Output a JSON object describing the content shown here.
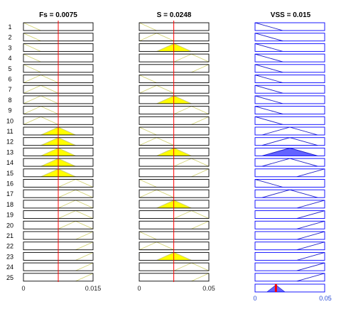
{
  "viewer": {
    "columns": [
      {
        "key": "fs",
        "title": "Fs = 0.0075",
        "kind": "input",
        "value": 0.0075,
        "range": [
          0,
          0.015
        ],
        "tick_left": "0",
        "tick_right": "0.015",
        "mf_color": "#d4d47a",
        "fill_color": "#ffff00",
        "box_color": "#000000"
      },
      {
        "key": "s",
        "title": "S = 0.0248",
        "kind": "input",
        "value": 0.0248,
        "range": [
          0,
          0.05
        ],
        "tick_left": "0",
        "tick_right": "0.05",
        "mf_color": "#d4d47a",
        "fill_color": "#ffff00",
        "box_color": "#000000"
      },
      {
        "key": "vss",
        "title": "VSS = 0.015",
        "kind": "output",
        "value": 0.015,
        "range": [
          0,
          0.05
        ],
        "tick_left": "0",
        "tick_right": "0.05",
        "mf_color": "#2020c8",
        "fill_color": "#6464ff",
        "box_color": "#0000ff",
        "tick_color": "#2a4bd7"
      }
    ],
    "rule_numbers": [
      "1",
      "2",
      "3",
      "4",
      "5",
      "6",
      "7",
      "8",
      "9",
      "10",
      "11",
      "12",
      "13",
      "14",
      "15",
      "16",
      "17",
      "18",
      "19",
      "20",
      "21",
      "22",
      "23",
      "24",
      "25"
    ],
    "rules": [
      [
        "low",
        "low",
        "low"
      ],
      [
        "low",
        "mid",
        "low"
      ],
      [
        "low",
        "high",
        "low"
      ],
      [
        "low",
        "vhigh",
        "low"
      ],
      [
        "low",
        "vvhigh",
        "low"
      ],
      [
        "mid",
        "low",
        "low"
      ],
      [
        "mid",
        "mid",
        "low"
      ],
      [
        "mid",
        "high",
        "low"
      ],
      [
        "mid",
        "vhigh",
        "low"
      ],
      [
        "mid",
        "vvhigh",
        "low"
      ],
      [
        "high",
        "low",
        "mid"
      ],
      [
        "high",
        "mid",
        "mid"
      ],
      [
        "high",
        "high",
        "mid"
      ],
      [
        "high",
        "vhigh",
        "mid"
      ],
      [
        "high",
        "vvhigh",
        "high"
      ],
      [
        "vhigh",
        "low",
        "low"
      ],
      [
        "vhigh",
        "mid",
        "mid"
      ],
      [
        "vhigh",
        "high",
        "high"
      ],
      [
        "vhigh",
        "vhigh",
        "high"
      ],
      [
        "vhigh",
        "vvhigh",
        "high"
      ],
      [
        "vvhigh",
        "low",
        "high"
      ],
      [
        "vvhigh",
        "mid",
        "high"
      ],
      [
        "vvhigh",
        "high",
        "high"
      ],
      [
        "vvhigh",
        "vhigh",
        "high"
      ],
      [
        "vvhigh",
        "vvhigh",
        "high"
      ]
    ],
    "input_mfs": {
      "low": [
        -0.25,
        0,
        0.25
      ],
      "mid": [
        0,
        0.25,
        0.5
      ],
      "high": [
        0.25,
        0.5,
        0.75
      ],
      "vhigh": [
        0.5,
        0.75,
        1
      ],
      "vvhigh": [
        0.75,
        1,
        1.25
      ]
    },
    "output_mfs": {
      "low": [
        -0.4,
        0,
        0.4
      ],
      "mid": [
        0.1,
        0.5,
        0.9
      ],
      "high": [
        0.6,
        1,
        1.4
      ]
    },
    "aggregate_fill": 0.9,
    "result_line_color": "#ff0000",
    "result_value_color": "#ff0000"
  }
}
